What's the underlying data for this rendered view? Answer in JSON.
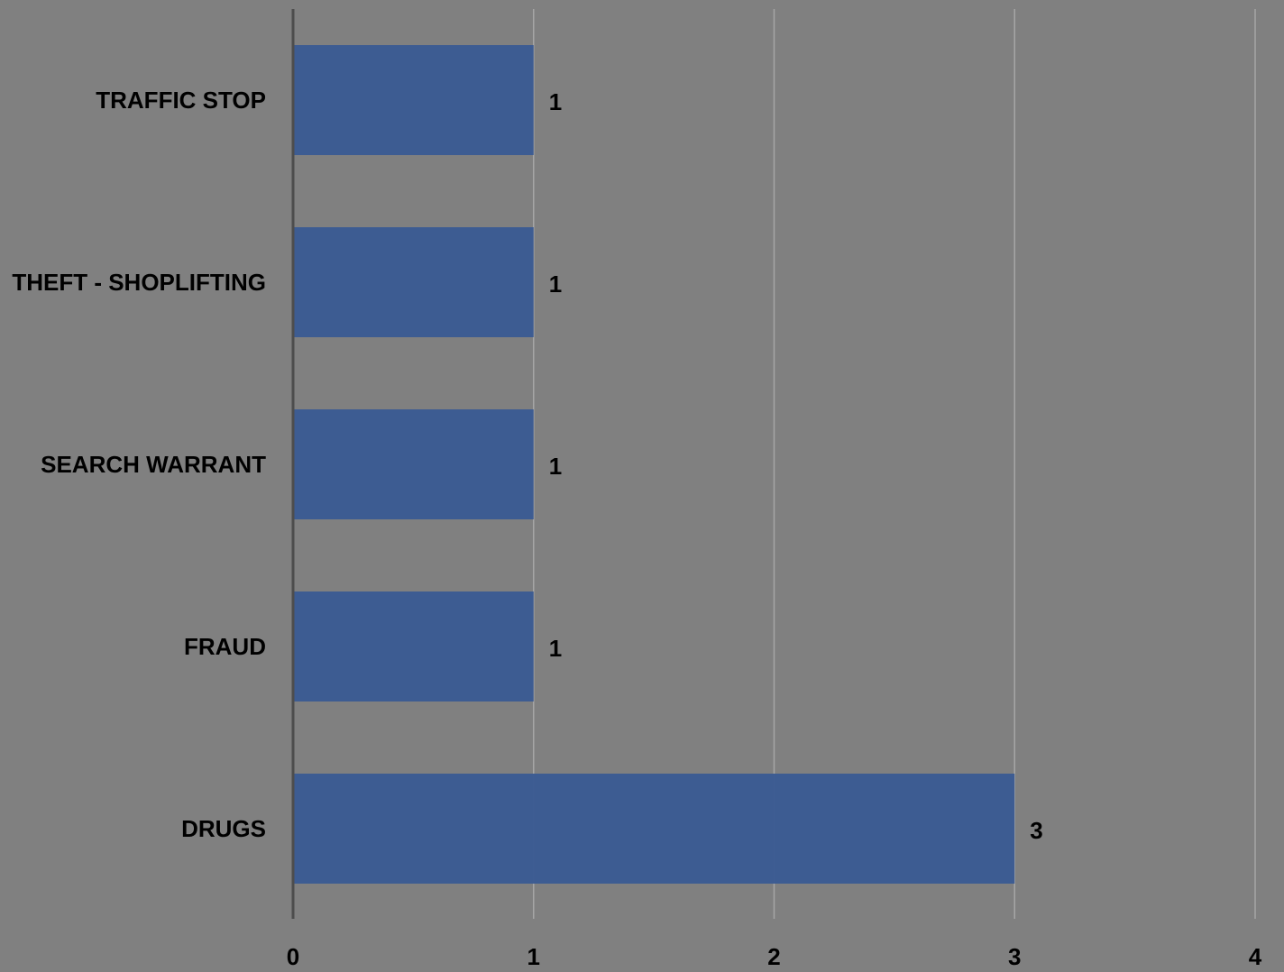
{
  "chart_data": {
    "type": "bar",
    "orientation": "horizontal",
    "categories": [
      "TRAFFIC STOP",
      "THEFT - SHOPLIFTING",
      "SEARCH WARRANT",
      "FRAUD",
      "DRUGS"
    ],
    "values": [
      1,
      1,
      1,
      1,
      3
    ],
    "data_labels": [
      "1",
      "1",
      "1",
      "1",
      "3"
    ],
    "xlim": [
      0,
      4
    ],
    "x_ticks": [
      "0",
      "1",
      "2",
      "3",
      "4"
    ],
    "grid": "vertical",
    "legend": "none",
    "bar_color": "#3b5b93",
    "background_color": "#808080",
    "gridline_color": "#a6a6a6",
    "axis_line_color": "#4d4d4d"
  }
}
